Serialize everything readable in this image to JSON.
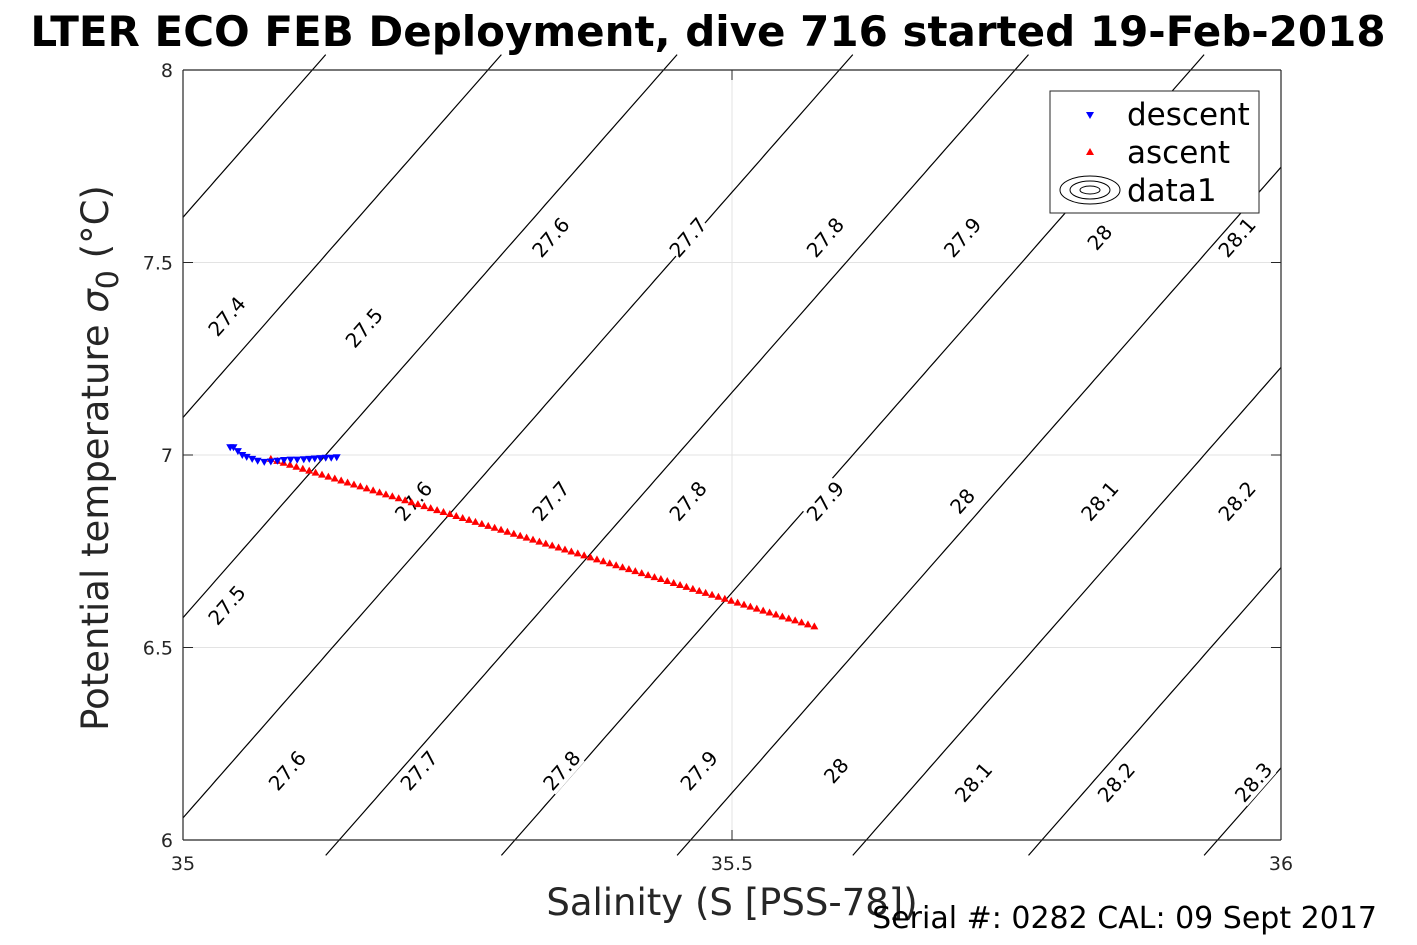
{
  "figure": {
    "title": "LTER ECO FEB Deployment, dive 716 started 19-Feb-2018",
    "footer": "Serial #: 0282  CAL: 09 Sept 2017"
  },
  "chart_data": {
    "type": "scatter",
    "title": "LTER ECO FEB Deployment, dive 716 started 19-Feb-2018",
    "xlabel": "Salinity (S [PSS-78])",
    "ylabel_main": "Potential temperature ",
    "ylabel_sigma": "σ",
    "ylabel_sub": "0",
    "ylabel_unit": " (°C)",
    "xlim": [
      35,
      36
    ],
    "ylim": [
      6,
      8
    ],
    "xticks": [
      35,
      35.5,
      36
    ],
    "xtick_labels": [
      "35",
      "35.5",
      "36"
    ],
    "yticks": [
      6,
      6.5,
      7,
      7.5,
      8
    ],
    "ytick_labels": [
      "6",
      "6.5",
      "7",
      "7.5",
      "8"
    ],
    "grid": true,
    "legend_position": "top-right",
    "series": [
      {
        "name": "descent",
        "marker": "triangle-down",
        "color": "#0000ff",
        "points": [
          [
            35.043,
            7.02
          ],
          [
            35.046,
            7.02
          ],
          [
            35.05,
            7.01
          ],
          [
            35.054,
            7.0
          ],
          [
            35.058,
            6.995
          ],
          [
            35.063,
            6.99
          ],
          [
            35.068,
            6.985
          ],
          [
            35.074,
            6.982
          ],
          [
            35.08,
            6.983
          ],
          [
            35.086,
            6.985
          ],
          [
            35.092,
            6.987
          ],
          [
            35.098,
            6.988
          ],
          [
            35.104,
            6.988
          ],
          [
            35.11,
            6.989
          ],
          [
            35.115,
            6.99
          ],
          [
            35.12,
            6.991
          ],
          [
            35.125,
            6.992
          ],
          [
            35.13,
            6.993
          ],
          [
            35.135,
            6.993
          ],
          [
            35.14,
            6.994
          ]
        ]
      },
      {
        "name": "ascent",
        "marker": "triangle-up",
        "color": "#ff0000",
        "start": [
          35.08,
          6.99
        ],
        "end": [
          35.575,
          6.555
        ],
        "count": 86
      },
      {
        "name": "data1",
        "type": "contour",
        "color": "#000000",
        "levels": [
          27.4,
          27.5,
          27.6,
          27.7,
          27.8,
          27.9,
          28.0,
          28.1,
          28.2,
          28.3
        ]
      }
    ],
    "contour_labels": [
      {
        "text": "27.4",
        "x": 35.04,
        "y": 7.36
      },
      {
        "text": "27.5",
        "x": 35.165,
        "y": 7.33
      },
      {
        "text": "27.6",
        "x": 35.335,
        "y": 7.565
      },
      {
        "text": "27.7",
        "x": 35.46,
        "y": 7.565
      },
      {
        "text": "27.8",
        "x": 35.585,
        "y": 7.565
      },
      {
        "text": "27.9",
        "x": 35.71,
        "y": 7.565
      },
      {
        "text": "28",
        "x": 35.835,
        "y": 7.565
      },
      {
        "text": "28.1",
        "x": 35.96,
        "y": 7.565
      },
      {
        "text": "27.5",
        "x": 35.04,
        "y": 6.61
      },
      {
        "text": "27.6",
        "x": 35.21,
        "y": 6.88
      },
      {
        "text": "27.7",
        "x": 35.335,
        "y": 6.88
      },
      {
        "text": "27.8",
        "x": 35.46,
        "y": 6.88
      },
      {
        "text": "27.9",
        "x": 35.585,
        "y": 6.88
      },
      {
        "text": "28",
        "x": 35.71,
        "y": 6.88
      },
      {
        "text": "28.1",
        "x": 35.835,
        "y": 6.88
      },
      {
        "text": "28.2",
        "x": 35.96,
        "y": 6.88
      },
      {
        "text": "27.6",
        "x": 35.095,
        "y": 6.18
      },
      {
        "text": "27.7",
        "x": 35.215,
        "y": 6.18
      },
      {
        "text": "27.8",
        "x": 35.345,
        "y": 6.18
      },
      {
        "text": "27.9",
        "x": 35.47,
        "y": 6.18
      },
      {
        "text": "28",
        "x": 35.595,
        "y": 6.18
      },
      {
        "text": "28.1",
        "x": 35.72,
        "y": 6.15
      },
      {
        "text": "28.2",
        "x": 35.85,
        "y": 6.15
      },
      {
        "text": "28.3",
        "x": 35.975,
        "y": 6.15
      }
    ]
  }
}
